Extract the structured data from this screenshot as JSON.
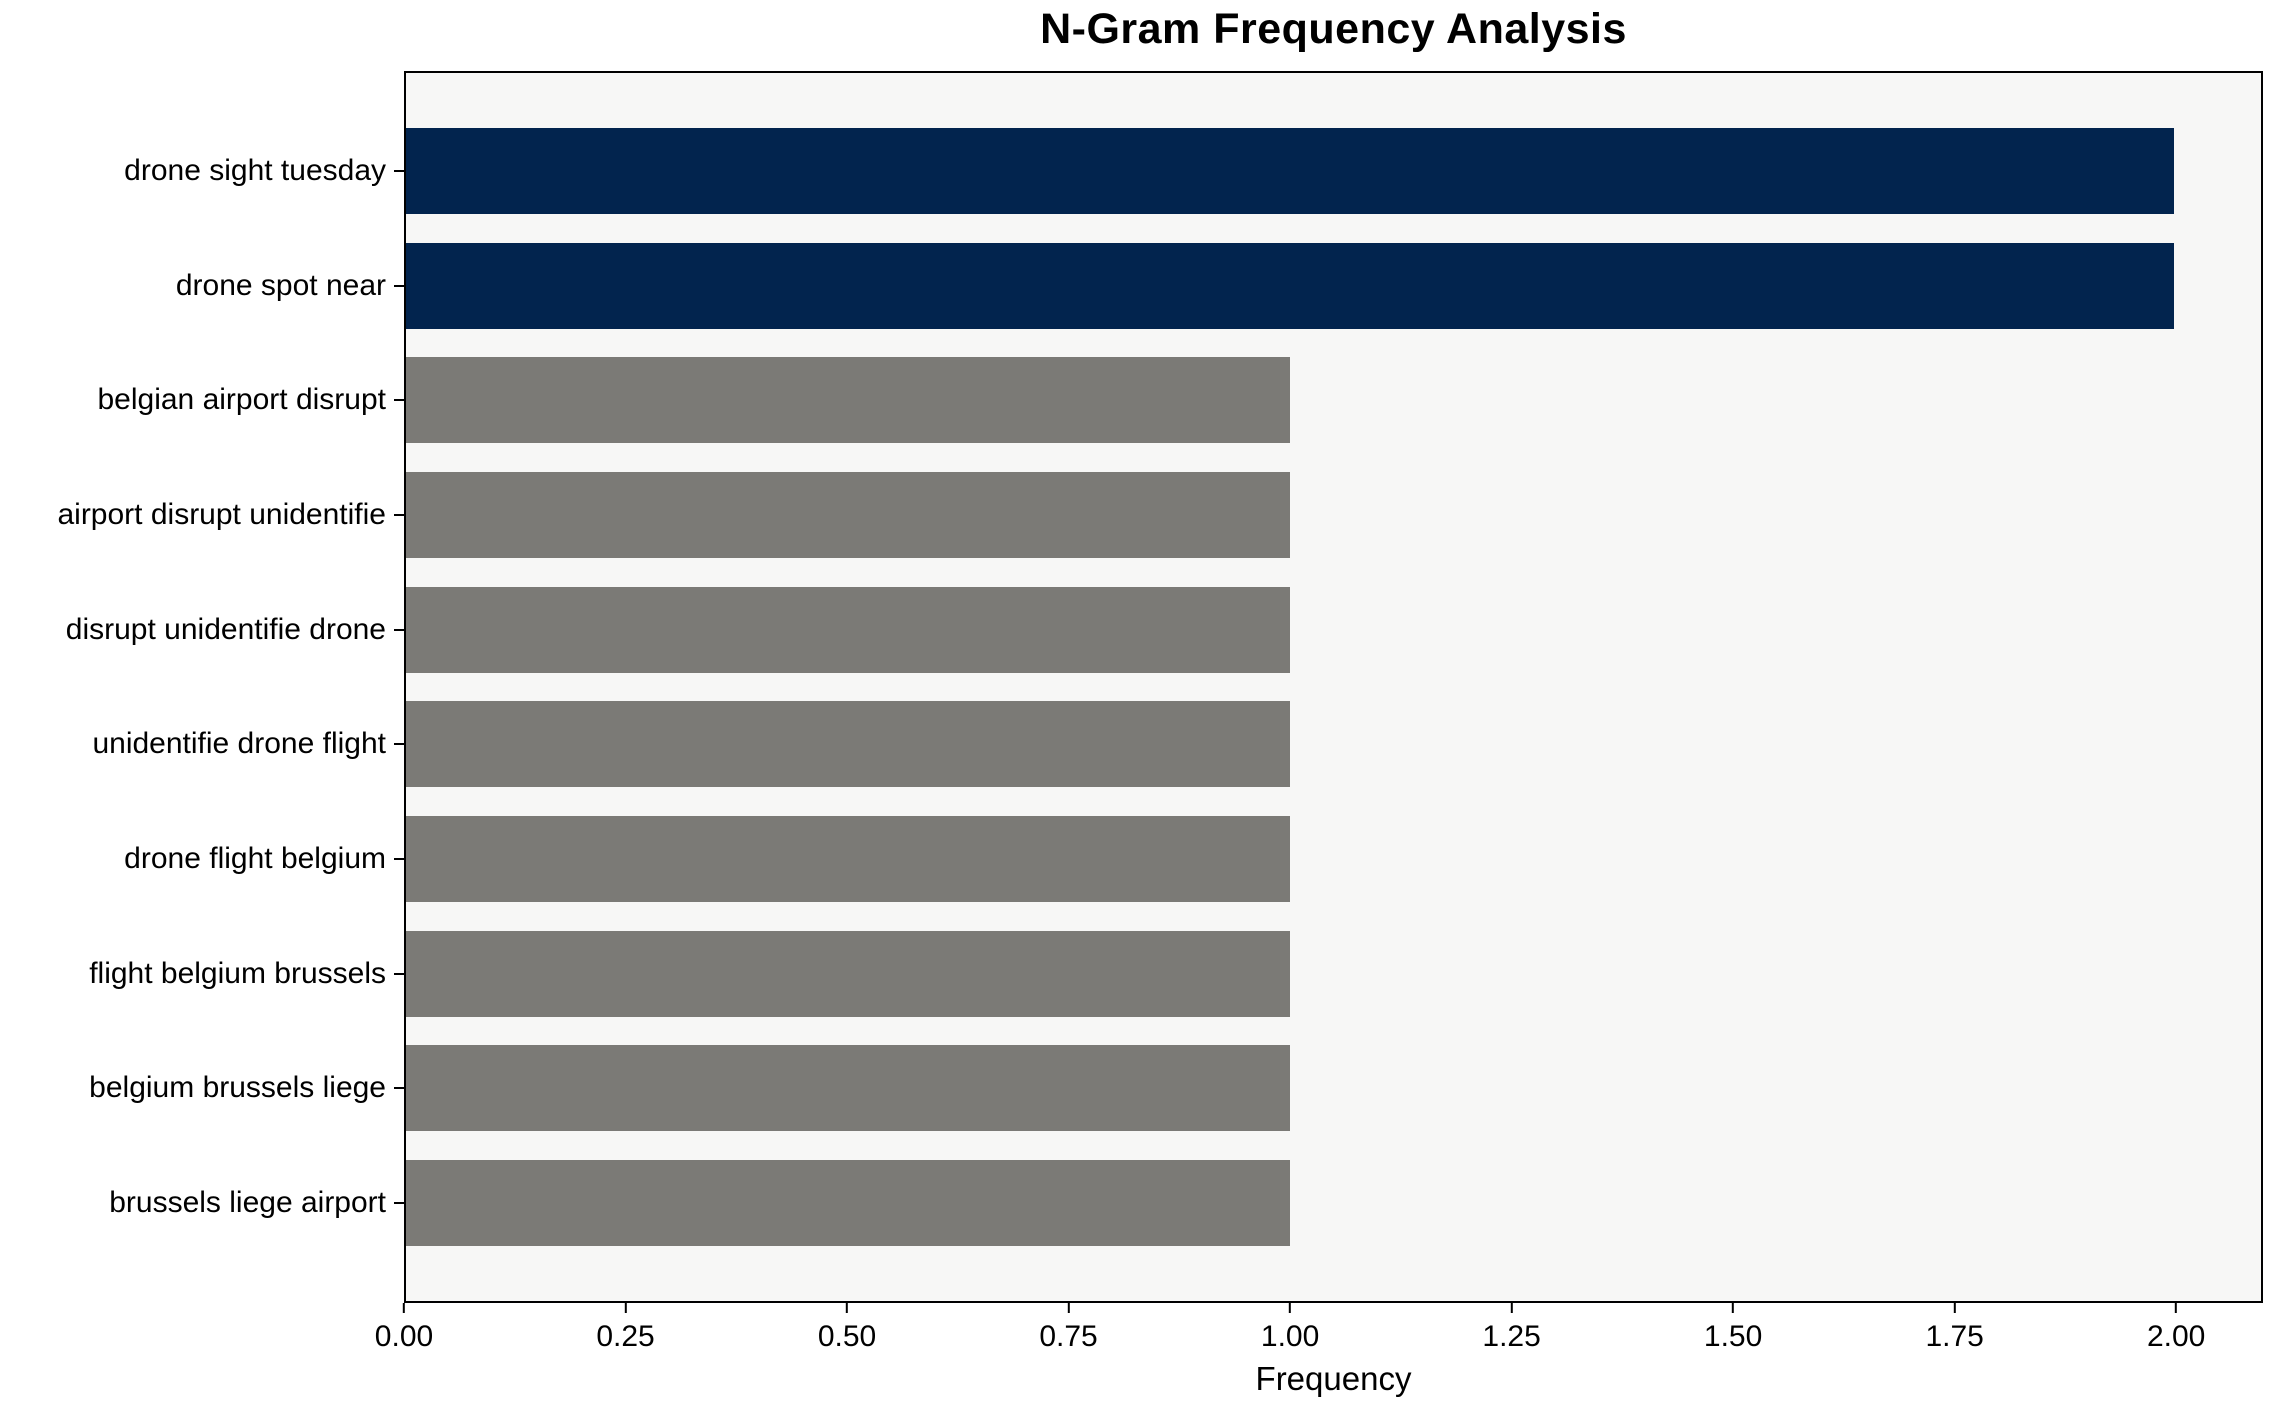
{
  "chart_data": {
    "type": "bar",
    "orientation": "horizontal",
    "title": "N-Gram Frequency Analysis",
    "xlabel": "Frequency",
    "ylabel": "",
    "categories": [
      "drone sight tuesday",
      "drone spot near",
      "belgian airport disrupt",
      "airport disrupt unidentifie",
      "disrupt unidentifie drone",
      "unidentifie drone flight",
      "drone flight belgium",
      "flight belgium brussels",
      "belgium brussels liege",
      "brussels liege airport"
    ],
    "values": [
      2,
      2,
      1,
      1,
      1,
      1,
      1,
      1,
      1,
      1
    ],
    "colors": [
      "#02244e",
      "#02244e",
      "#7b7a76",
      "#7b7a76",
      "#7b7a76",
      "#7b7a76",
      "#7b7a76",
      "#7b7a76",
      "#7b7a76",
      "#7b7a76"
    ],
    "xlim": [
      0,
      2.098
    ],
    "xticks": [
      {
        "value": 0,
        "label": "0.00"
      },
      {
        "value": 0.25,
        "label": "0.25"
      },
      {
        "value": 0.5,
        "label": "0.50"
      },
      {
        "value": 0.75,
        "label": "0.75"
      },
      {
        "value": 1,
        "label": "1.00"
      },
      {
        "value": 1.25,
        "label": "1.25"
      },
      {
        "value": 1.5,
        "label": "1.50"
      },
      {
        "value": 1.75,
        "label": "1.75"
      },
      {
        "value": 2,
        "label": "2.00"
      }
    ],
    "grid": false,
    "legend": null,
    "plot_background": "#f7f7f6",
    "figure_background": "#ffffff",
    "highlight_color": "#02244e",
    "default_bar_color": "#7b7a76",
    "spine_color": "#000000"
  }
}
